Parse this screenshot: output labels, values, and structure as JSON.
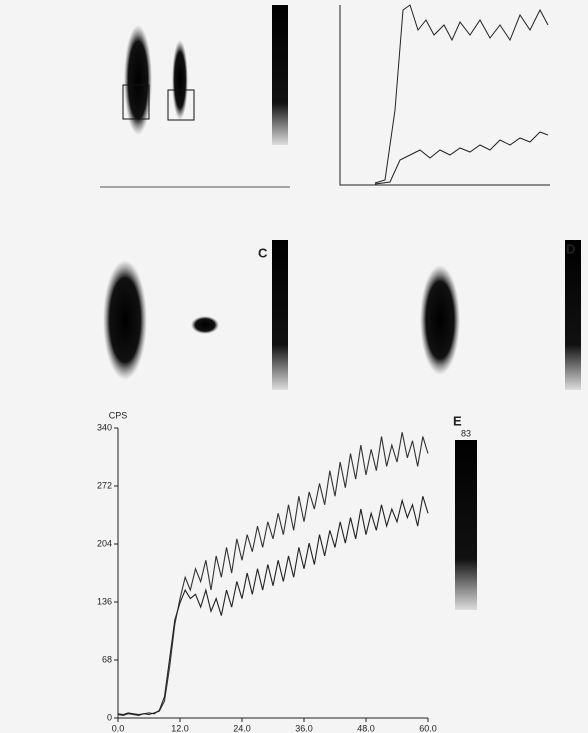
{
  "chart_data": {
    "type": "line",
    "y_label": "CPS",
    "panel_label": "E",
    "scale_label": "83",
    "x": [
      0,
      1,
      2,
      3,
      4,
      5,
      6,
      7,
      8,
      9,
      10,
      11,
      12,
      13,
      14,
      15,
      16,
      17,
      18,
      19,
      20,
      21,
      22,
      23,
      24,
      25,
      26,
      27,
      28,
      29,
      30,
      31,
      32,
      33,
      34,
      35,
      36,
      37,
      38,
      39,
      40,
      41,
      42,
      43,
      44,
      45,
      46,
      47,
      48,
      49,
      50,
      51,
      52,
      53,
      54,
      55,
      56,
      57,
      58,
      59,
      60
    ],
    "series": [
      {
        "color": "#333333",
        "values": [
          4,
          3,
          5,
          4,
          3,
          5,
          4,
          6,
          8,
          20,
          60,
          110,
          140,
          165,
          150,
          175,
          160,
          185,
          150,
          190,
          165,
          200,
          170,
          210,
          185,
          215,
          195,
          225,
          200,
          230,
          210,
          240,
          215,
          250,
          220,
          260,
          230,
          265,
          245,
          275,
          250,
          290,
          260,
          300,
          270,
          310,
          280,
          320,
          285,
          315,
          290,
          330,
          295,
          320,
          300,
          335,
          305,
          325,
          295,
          330,
          310
        ]
      },
      {
        "color": "#222222",
        "values": [
          5,
          4,
          6,
          5,
          4,
          5,
          6,
          5,
          9,
          25,
          70,
          115,
          135,
          150,
          140,
          145,
          130,
          150,
          125,
          140,
          120,
          150,
          130,
          160,
          140,
          170,
          145,
          175,
          150,
          180,
          155,
          185,
          160,
          190,
          165,
          200,
          175,
          205,
          180,
          215,
          190,
          220,
          200,
          230,
          205,
          235,
          210,
          245,
          215,
          240,
          220,
          250,
          225,
          245,
          230,
          255,
          235,
          250,
          225,
          260,
          240
        ]
      }
    ],
    "xlim": [
      0,
      60
    ],
    "ylim": [
      0,
      340
    ],
    "xticks": [
      {
        "value": 0,
        "label": "0.0"
      },
      {
        "value": 12,
        "label": "12.0"
      },
      {
        "value": 24,
        "label": "24.0"
      },
      {
        "value": 36,
        "label": "36.0"
      },
      {
        "value": 48,
        "label": "48.0"
      },
      {
        "value": 60,
        "label": "60.0"
      }
    ],
    "yticks": [
      0,
      68,
      136,
      204,
      272,
      340
    ]
  },
  "panels": {
    "c": "C",
    "d": "D"
  }
}
